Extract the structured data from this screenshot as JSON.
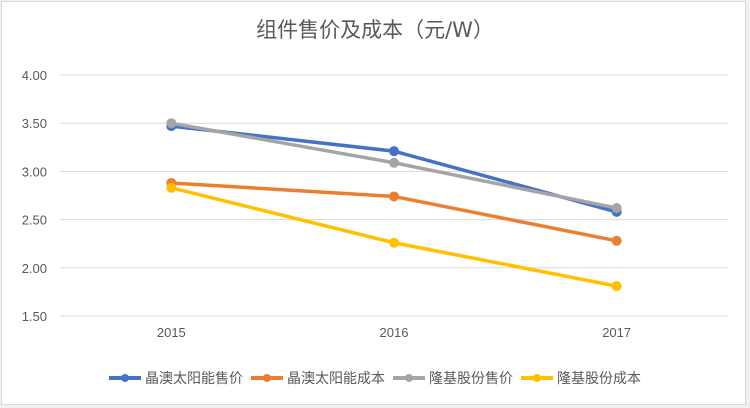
{
  "chart_data": {
    "type": "line",
    "title": "组件售价及成本（元/W）",
    "xlabel": "",
    "ylabel": "",
    "categories": [
      "2015",
      "2016",
      "2017"
    ],
    "ylim": [
      1.5,
      4.0
    ],
    "yticks": [
      "4.00",
      "3.50",
      "3.00",
      "2.50",
      "2.00",
      "1.50"
    ],
    "ytick_values": [
      4.0,
      3.5,
      3.0,
      2.5,
      2.0,
      1.5
    ],
    "grid": true,
    "legend_position": "bottom",
    "series": [
      {
        "name": "晶澳太阳能售价",
        "color": "#4472c4",
        "values": [
          3.47,
          3.21,
          2.58
        ]
      },
      {
        "name": "晶澳太阳能成本",
        "color": "#ed7d31",
        "values": [
          2.88,
          2.74,
          2.28
        ]
      },
      {
        "name": "隆基股份售价",
        "color": "#a5a5a5",
        "values": [
          3.5,
          3.09,
          2.62
        ]
      },
      {
        "name": "隆基股份成本",
        "color": "#ffc000",
        "values": [
          2.83,
          2.26,
          1.81
        ]
      }
    ]
  }
}
